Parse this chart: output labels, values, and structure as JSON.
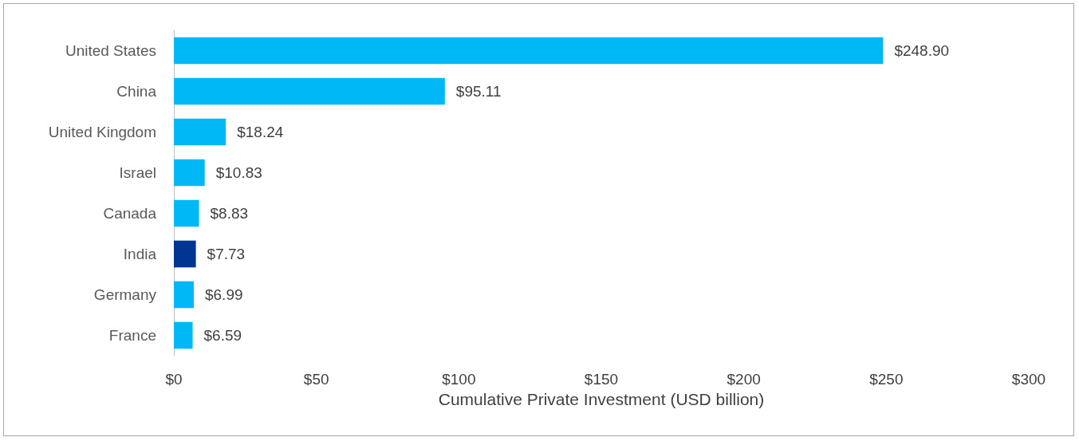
{
  "chart_data": {
    "type": "bar",
    "orientation": "horizontal",
    "xlabel": "Cumulative Private Investment (USD billion)",
    "categories": [
      "United States",
      "China",
      "United Kingdom",
      "Israel",
      "Canada",
      "India",
      "Germany",
      "France"
    ],
    "values": [
      248.9,
      95.11,
      18.24,
      10.83,
      8.83,
      7.73,
      6.99,
      6.59
    ],
    "colors": [
      "#00b8f5",
      "#00b8f5",
      "#00b8f5",
      "#00b8f5",
      "#00b8f5",
      "#003594",
      "#00b8f5",
      "#00b8f5"
    ],
    "value_labels": [
      "$248.90",
      "$95.11",
      "$18.24",
      "$10.83",
      "$8.83",
      "$7.73",
      "$6.99",
      "$6.59"
    ],
    "xlim": [
      0,
      300
    ],
    "xticks": [
      {
        "value": 0,
        "label": "$0"
      },
      {
        "value": 50,
        "label": "$50"
      },
      {
        "value": 100,
        "label": "$100"
      },
      {
        "value": 150,
        "label": "$150"
      },
      {
        "value": 200,
        "label": "$200"
      },
      {
        "value": 250,
        "label": "$250"
      },
      {
        "value": 300,
        "label": "$300"
      }
    ],
    "grid": false
  }
}
